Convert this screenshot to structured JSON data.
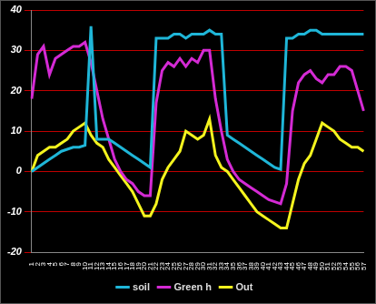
{
  "chart_data": {
    "type": "line",
    "categories": [
      "1",
      "2",
      "3",
      "4",
      "5",
      "6",
      "7",
      "8",
      "9",
      "10",
      "11",
      "12",
      "13",
      "14",
      "15",
      "16",
      "17",
      "18",
      "19",
      "20",
      "21",
      "22",
      "23",
      "24",
      "25",
      "26",
      "27",
      "28",
      "29",
      "30",
      "31",
      "32",
      "33",
      "34",
      "35",
      "36",
      "37",
      "38",
      "39",
      "40",
      "41",
      "42",
      "43",
      "44",
      "45",
      "46",
      "47",
      "48",
      "49",
      "50",
      "51",
      "52",
      "53",
      "54",
      "55",
      "56",
      "57"
    ],
    "series": [
      {
        "name": "soil",
        "color": "#1fb6d8",
        "values": [
          0,
          1,
          2,
          3,
          4,
          5,
          5.5,
          6,
          6,
          6.5,
          36,
          8,
          8,
          8,
          7,
          6,
          5,
          4,
          3,
          2,
          1,
          33,
          33,
          33,
          34,
          34,
          33,
          34,
          34,
          34,
          35,
          34,
          34,
          9,
          8,
          7,
          6,
          5,
          4,
          3,
          2,
          1,
          0.5,
          33,
          33,
          34,
          34,
          35,
          35,
          34,
          34,
          34,
          34,
          34,
          34,
          34,
          34
        ]
      },
      {
        "name": "Green h",
        "color": "#d42ad4",
        "values": [
          18,
          29,
          31,
          24,
          28,
          29,
          30,
          31,
          31,
          32,
          27,
          20,
          13,
          8,
          3,
          0,
          -2,
          -3,
          -5,
          -6,
          -6,
          17,
          25,
          27,
          26,
          28,
          26,
          28,
          27,
          30,
          30,
          18,
          10,
          3,
          0,
          -2,
          -3,
          -4,
          -5,
          -6,
          -7,
          -7.5,
          -8,
          -3,
          15,
          22,
          24,
          25,
          23,
          22,
          24,
          24,
          26,
          26,
          25,
          20,
          15
        ]
      },
      {
        "name": "Out",
        "color": "#f4f41e",
        "values": [
          0,
          4,
          5,
          6,
          6,
          7,
          8,
          10,
          11,
          12,
          9,
          7,
          6,
          3,
          1,
          -1,
          -3,
          -5,
          -8,
          -11,
          -11,
          -8,
          -2,
          1,
          3,
          5,
          10,
          9,
          8,
          9,
          13,
          4,
          1,
          0,
          -2,
          -4,
          -6,
          -8,
          -10,
          -11,
          -12,
          -13,
          -14,
          -14,
          -8,
          -2,
          2,
          4,
          8,
          12,
          11,
          10,
          8,
          7,
          6,
          6,
          5
        ]
      }
    ],
    "ylim": [
      -20,
      40
    ],
    "yticks": [
      -20,
      -10,
      0,
      10,
      20,
      30,
      40
    ],
    "grid": true,
    "legend": "bottom"
  }
}
